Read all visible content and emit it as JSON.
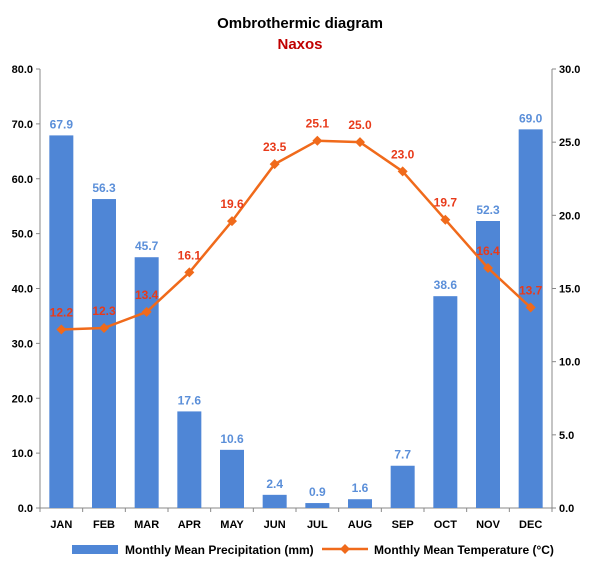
{
  "chart_data": {
    "type": "bar+line",
    "title": "Ombrothermic diagram",
    "subtitle": "Naxos",
    "categories": [
      "JAN",
      "FEB",
      "MAR",
      "APR",
      "MAY",
      "JUN",
      "JUL",
      "AUG",
      "SEP",
      "OCT",
      "NOV",
      "DEC"
    ],
    "series": [
      {
        "name": "Monthly Mean Precipitation (mm)",
        "type": "bar",
        "axis": "left",
        "values": [
          67.9,
          56.3,
          45.7,
          17.6,
          10.6,
          2.4,
          0.9,
          1.6,
          7.7,
          38.6,
          52.3,
          69.0
        ],
        "labels": [
          "67.9",
          "56.3",
          "45.7",
          "17.6",
          "10.6",
          "2.4",
          "0.9",
          "1.6",
          "7.7",
          "38.6",
          "52.3",
          "69.0"
        ],
        "color": "#4f86d6",
        "label_color": "#5b8fd9"
      },
      {
        "name": "Monthly Mean Temperature (°C)",
        "type": "line",
        "axis": "right",
        "values": [
          12.2,
          12.3,
          13.4,
          16.1,
          19.6,
          23.5,
          25.1,
          25.0,
          23.0,
          19.7,
          16.4,
          13.7
        ],
        "labels": [
          "12.2",
          "12.3",
          "13.4",
          "16.1",
          "19.6",
          "23.5",
          "25.1",
          "25.0",
          "23.0",
          "19.7",
          "16.4",
          "13.7"
        ],
        "color": "#f06a1b",
        "label_color": "#e83a1a"
      }
    ],
    "y_left": {
      "min": 0,
      "max": 80,
      "ticks": [
        0,
        10,
        20,
        30,
        40,
        50,
        60,
        70,
        80
      ],
      "tick_labels": [
        "0.0",
        "10.0",
        "20.0",
        "30.0",
        "40.0",
        "50.0",
        "60.0",
        "70.0",
        "80.0"
      ]
    },
    "y_right": {
      "min": 0,
      "max": 30,
      "ticks": [
        0,
        5,
        10,
        15,
        20,
        25,
        30
      ],
      "tick_labels": [
        "0.0",
        "5.0",
        "10.0",
        "15.0",
        "20.0",
        "25.0",
        "30.0"
      ]
    },
    "grid": false,
    "legend": "bottom",
    "subtitle_color": "#c00000",
    "axis_color": "#888888"
  }
}
